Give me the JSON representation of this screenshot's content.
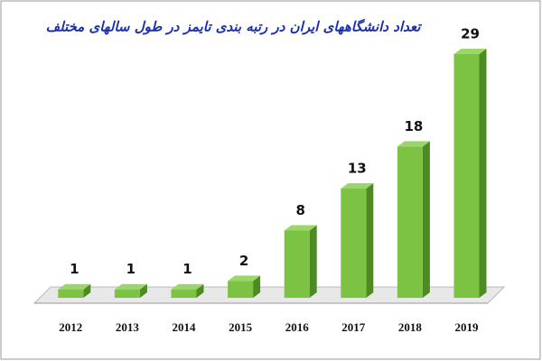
{
  "chart_data": {
    "type": "bar",
    "title": "تعداد دانشگاههای ایران در رتبه بندی تایمز در طول سالهای مختلف",
    "categories": [
      "2012",
      "2013",
      "2014",
      "2015",
      "2016",
      "2017",
      "2018",
      "2019"
    ],
    "values": [
      1,
      1,
      1,
      2,
      8,
      13,
      18,
      29
    ],
    "color": "#7cc243"
  }
}
